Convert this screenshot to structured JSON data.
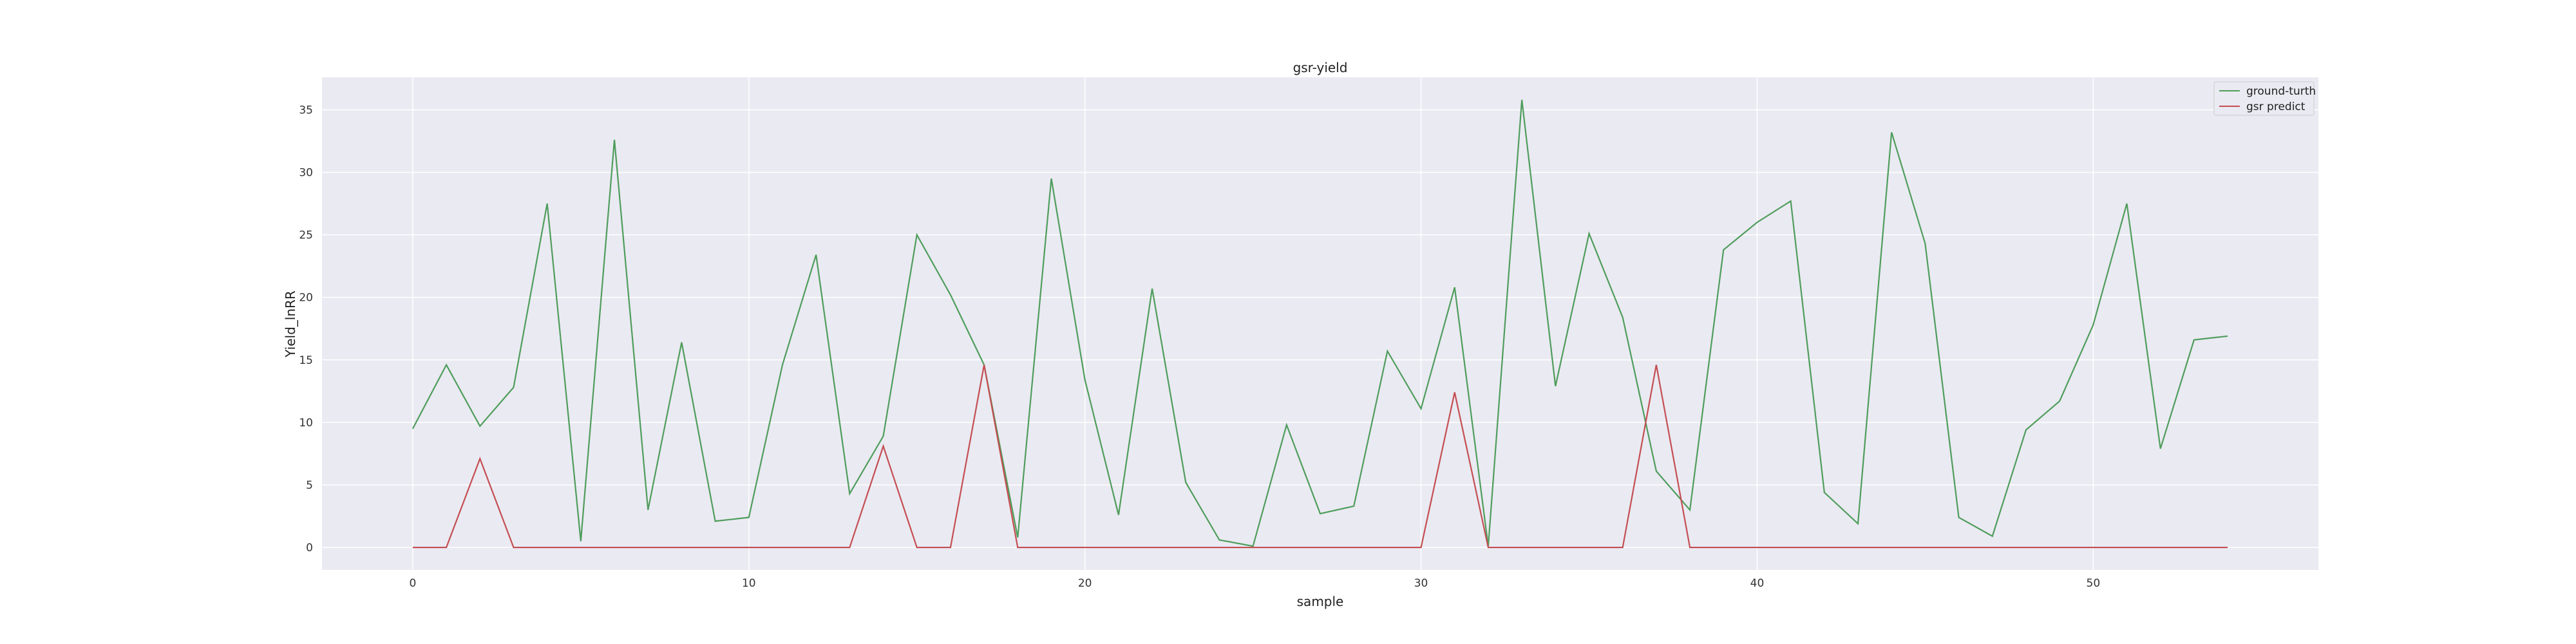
{
  "chart_data": {
    "type": "line",
    "title": "gsr-yield",
    "xlabel": "sample",
    "ylabel": "Yield_lnRR",
    "xlim": [
      -2.7,
      56.7
    ],
    "ylim": [
      -1.8,
      37.6
    ],
    "xticks": [
      0,
      10,
      20,
      30,
      40,
      50
    ],
    "yticks": [
      0,
      5,
      10,
      15,
      20,
      25,
      30,
      35
    ],
    "grid": true,
    "legend_position": "top-right",
    "x": [
      0,
      1,
      2,
      3,
      4,
      5,
      6,
      7,
      8,
      9,
      10,
      11,
      12,
      13,
      14,
      15,
      16,
      17,
      18,
      19,
      20,
      21,
      22,
      23,
      24,
      25,
      26,
      27,
      28,
      29,
      30,
      31,
      32,
      33,
      34,
      35,
      36,
      37,
      38,
      39,
      40,
      41,
      42,
      43,
      44,
      45,
      46,
      47,
      48,
      49,
      50,
      51,
      52,
      53,
      54
    ],
    "series": [
      {
        "name": "ground-turth",
        "color": "#4f9d5c",
        "values": [
          9.5,
          14.6,
          9.7,
          12.8,
          27.5,
          0.5,
          32.6,
          3.0,
          16.4,
          2.1,
          2.4,
          14.6,
          23.4,
          4.3,
          8.9,
          25.0,
          20.2,
          14.6,
          0.8,
          29.5,
          13.4,
          2.6,
          20.7,
          5.2,
          0.6,
          0.1,
          9.8,
          2.7,
          3.3,
          15.7,
          11.1,
          20.8,
          0.1,
          35.8,
          12.9,
          25.1,
          18.4,
          6.1,
          3.0,
          23.8,
          26.0,
          27.7,
          4.4,
          1.9,
          33.2,
          24.3,
          2.4,
          0.9,
          9.4,
          11.7,
          17.8,
          27.5,
          7.9,
          16.6,
          16.9
        ]
      },
      {
        "name": "gsr predict",
        "color": "#c44e52",
        "values": [
          0,
          0,
          7.1,
          0,
          0,
          0,
          0,
          0,
          0,
          0,
          0,
          0,
          0,
          0,
          8.1,
          0,
          0,
          14.6,
          0,
          0,
          0,
          0,
          0,
          0,
          0,
          0,
          0,
          0,
          0,
          0,
          0,
          12.4,
          0,
          0,
          0,
          0,
          0,
          14.6,
          0,
          0,
          0,
          0,
          0,
          0,
          0,
          0,
          0,
          0,
          0,
          0,
          0,
          0,
          0,
          0,
          0
        ]
      }
    ]
  },
  "colors": {
    "plot_background": "#eaeaf2",
    "grid": "#ffffff"
  }
}
